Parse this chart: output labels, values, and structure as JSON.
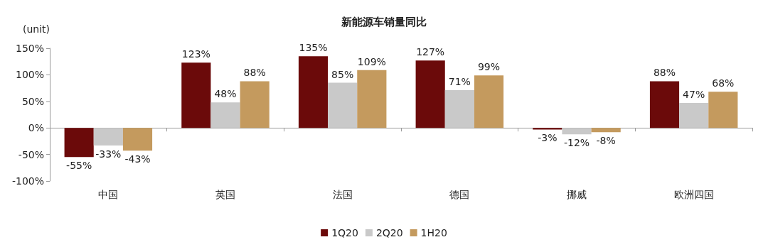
{
  "chart_data": {
    "type": "bar",
    "title": "新能源车销量同比",
    "ylabel": "(unit)",
    "categories": [
      "中国",
      "英国",
      "法国",
      "德国",
      "挪威",
      "欧洲四国"
    ],
    "series": [
      {
        "name": "1Q20",
        "color": "#6b0a0a",
        "values": [
          -55,
          123,
          135,
          127,
          -3,
          88
        ],
        "value_labels": [
          "-55%",
          "123%",
          "135%",
          "127%",
          "-3%",
          "88%"
        ]
      },
      {
        "name": "2Q20",
        "color": "#c9c9c9",
        "values": [
          -33,
          48,
          85,
          71,
          -12,
          47
        ],
        "value_labels": [
          "-33%",
          "48%",
          "85%",
          "71%",
          "-12%",
          "47%"
        ]
      },
      {
        "name": "1H20",
        "color": "#c49a5e",
        "values": [
          -43,
          88,
          109,
          99,
          -8,
          68
        ],
        "value_labels": [
          "-43%",
          "88%",
          "109%",
          "99%",
          "-8%",
          "68%"
        ]
      }
    ],
    "ylim": [
      -100,
      150
    ],
    "yticks": [
      {
        "value": -100,
        "label": "-100%"
      },
      {
        "value": -50,
        "label": "-50%"
      },
      {
        "value": 0,
        "label": "0%"
      },
      {
        "value": 50,
        "label": "50%"
      },
      {
        "value": 100,
        "label": "100%"
      },
      {
        "value": 150,
        "label": "150%"
      }
    ],
    "legend": "bottom"
  }
}
